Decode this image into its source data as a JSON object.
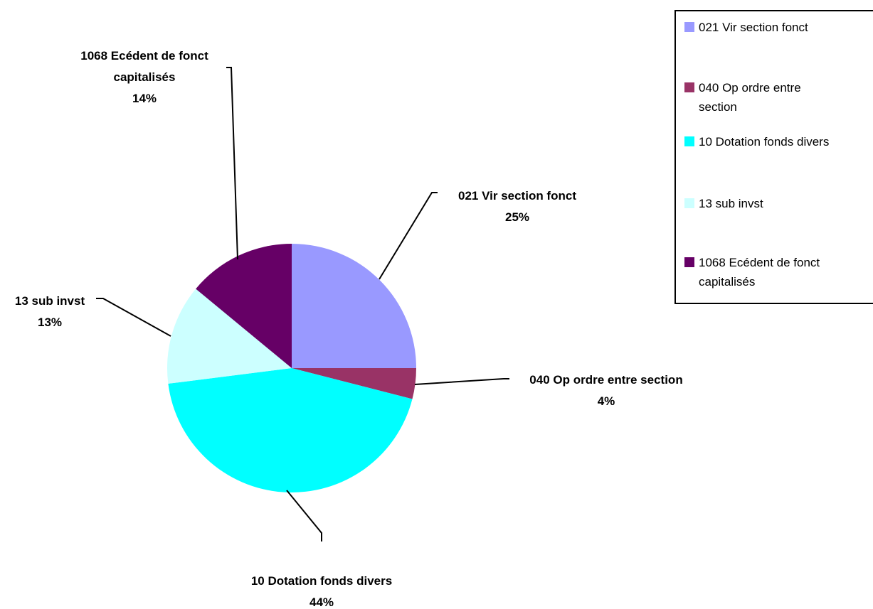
{
  "chart_data": {
    "type": "pie",
    "title": "",
    "categories": [
      "021 Vir section fonct",
      "040 Op ordre entre section",
      "10 Dotation fonds divers",
      "13 sub invst",
      "1068 Ecédent de fonct capitalisés"
    ],
    "values": [
      25,
      4,
      44,
      13,
      14
    ],
    "value_labels": [
      "25%",
      "4%",
      "44%",
      "13%",
      "14%"
    ],
    "colors": [
      "#9999FF",
      "#993366",
      "#00FFFF",
      "#CCFFFF",
      "#660066"
    ],
    "legend": {
      "position": "top-right",
      "entries": [
        [
          "021 Vir section fonct"
        ],
        [
          "040 Op ordre entre",
          "section"
        ],
        [
          "10 Dotation fonds divers"
        ],
        [
          "13 sub invst"
        ],
        [
          "1068 Ecédent de fonct",
          "capitalisés"
        ]
      ]
    },
    "data_labels": [
      [
        "021 Vir section fonct",
        "25%"
      ],
      [
        "040 Op ordre entre section",
        "4%"
      ],
      [
        "10 Dotation fonds divers",
        "44%"
      ],
      [
        "13 sub invst",
        "13%"
      ],
      [
        "1068 Ecédent de fonct",
        "capitalisés",
        "14%"
      ]
    ]
  }
}
